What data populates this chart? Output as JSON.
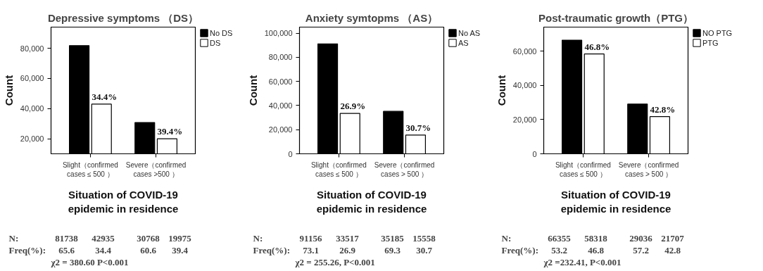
{
  "chart_data": [
    {
      "type": "bar",
      "title": "Depressive symptoms （DS）",
      "xlabel": "Situation of COVID-19\nepidemic in residence",
      "ylabel": "Count",
      "categories": [
        "Slight（confirmed\ncases ≤ 500 ）",
        "Severe（confirmed\ncases >500 ）"
      ],
      "series": [
        {
          "name": "No DS",
          "color": "#000000",
          "values": [
            81738,
            30768
          ]
        },
        {
          "name": "DS",
          "color": "#ffffff",
          "values": [
            42935,
            19975
          ]
        }
      ],
      "ylim": [
        10000,
        94000
      ],
      "yticks": [
        {
          "value": 20000,
          "label": "20,000"
        },
        {
          "value": 40000,
          "label": "40,000"
        },
        {
          "value": 60000,
          "label": "60,000"
        },
        {
          "value": 80000,
          "label": "80,000"
        }
      ],
      "grid": false,
      "legend": "top right",
      "annotations": [
        {
          "text": "34.4%",
          "x": "Slight（confirmed\ncases ≤ 500 ）",
          "y": 42935
        },
        {
          "text": "39.4%",
          "x": "Severe（confirmed\ncases >500 ）",
          "y": 19975
        },
        "N:  81738  42935  30768  19975",
        "Freq(%):  65.6  34.4  60.6  39.4",
        "χ2 = 380.60      P<0.001"
      ]
    },
    {
      "type": "bar",
      "title": "Anxiety symtopms （AS）",
      "xlabel": "Situation of COVID-19\nepidemic in residence",
      "ylabel": "Count",
      "categories": [
        "Slight（confirmed\ncases ≤ 500 ）",
        "Severe（confirmed\ncases > 500 ）"
      ],
      "series": [
        {
          "name": "No AS",
          "color": "#000000",
          "values": [
            91156,
            35185
          ]
        },
        {
          "name": "AS",
          "color": "#ffffff",
          "values": [
            33517,
            15558
          ]
        }
      ],
      "ylim": [
        0,
        105000
      ],
      "yticks": [
        0,
        {
          "value": 20000,
          "label": "20,000"
        },
        {
          "value": 40000,
          "label": "40,000"
        },
        {
          "value": 60000,
          "label": "60,000"
        },
        {
          "value": 80000,
          "label": "80,000"
        },
        {
          "value": 100000,
          "label": "100,000"
        }
      ],
      "grid": false,
      "legend": "top right",
      "annotations": [
        {
          "text": "26.9%",
          "x": "Slight（confirmed\ncases ≤ 500 ）",
          "y": 33517
        },
        {
          "text": "30.7%",
          "x": "Severe（confirmed\ncases > 500 ）",
          "y": 15558
        },
        "N:  91156  33517  35185  15558",
        "Freq(%):  73.1  26.9  69.3  30.7",
        "χ2 = 255.26,      P<0.001"
      ]
    },
    {
      "type": "bar",
      "title": "Post-traumatic growth（PTG）",
      "xlabel": "Situation of COVID-19\nepidemic in residence",
      "ylabel": "Count",
      "categories": [
        "Slight（confirmed\ncases ≤ 500 ）",
        "Severe（confirmed\ncases > 500 ）"
      ],
      "series": [
        {
          "name": "NO PTG",
          "color": "#000000",
          "values": [
            66355,
            29036
          ]
        },
        {
          "name": "PTG",
          "color": "#ffffff",
          "values": [
            58318,
            21707
          ]
        }
      ],
      "ylim": [
        0,
        74000
      ],
      "yticks": [
        0,
        {
          "value": 20000,
          "label": "20,000"
        },
        {
          "value": 40000,
          "label": "40,000"
        },
        {
          "value": 60000,
          "label": "60,000"
        }
      ],
      "grid": false,
      "legend": "top right",
      "annotations": [
        {
          "text": "46.8%",
          "x": "Slight（confirmed\ncases ≤ 500 ）",
          "y": 58318
        },
        {
          "text": "42.8%",
          "x": "Severe（confirmed\ncases > 500 ）",
          "y": 21707
        },
        "N:  66355  58318  29036  21707",
        "Freq(%):  53.2  46.8  57.2  42.8",
        "χ2 =232.41,      P<0.001"
      ]
    }
  ]
}
